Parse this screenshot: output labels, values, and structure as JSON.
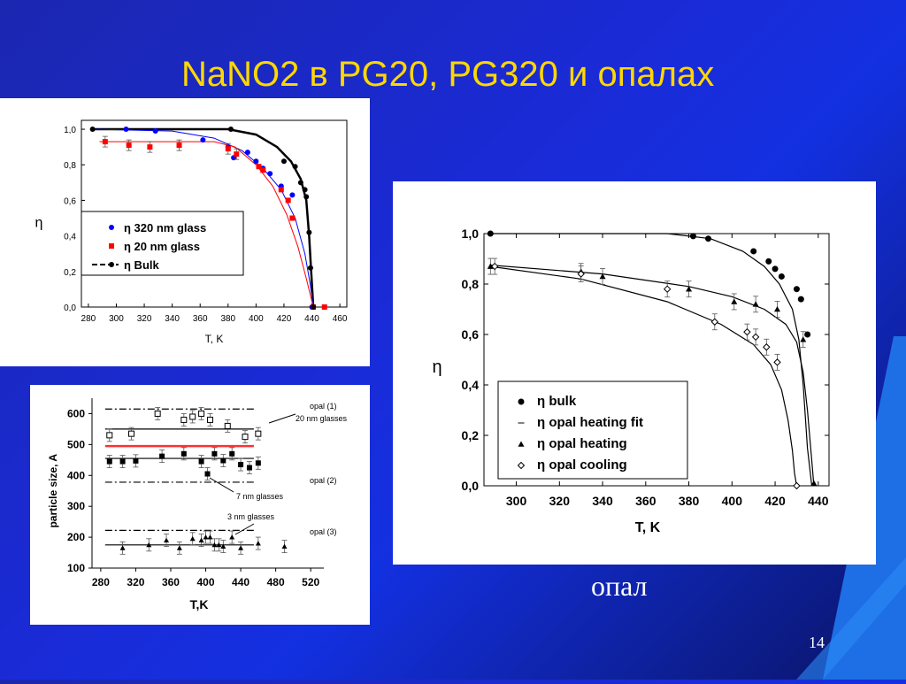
{
  "slide": {
    "title": "NaNO2 в PG20, PG320 и опалах",
    "opal_label": "опал",
    "page_number": "14"
  },
  "chart_data": [
    {
      "type": "scatter",
      "xlabel": "T, K",
      "ylabel": "η",
      "xlim": [
        275,
        465
      ],
      "ylim": [
        0.0,
        1.05
      ],
      "x_ticks": [
        "280",
        "300",
        "320",
        "340",
        "360",
        "380",
        "400",
        "420",
        "440",
        "460"
      ],
      "y_ticks": [
        "0,0",
        "0,2",
        "0,4",
        "0,6",
        "0,8",
        "1,0"
      ],
      "legend_position": "center-left",
      "series": [
        {
          "name": "η 320 nm glass",
          "color": "#0000ff",
          "marker": "circle",
          "x": [
            307,
            328,
            362,
            380,
            384,
            394,
            400,
            405,
            410,
            418,
            426,
            440
          ],
          "y": [
            1.0,
            0.99,
            0.94,
            0.9,
            0.84,
            0.87,
            0.82,
            0.78,
            0.75,
            0.68,
            0.63,
            0.0
          ]
        },
        {
          "name": "η 20 nm glass",
          "color": "#ff0000",
          "marker": "square",
          "x": [
            292,
            309,
            324,
            345,
            380,
            386,
            402,
            405,
            418,
            423,
            426,
            441,
            449
          ],
          "y": [
            0.93,
            0.91,
            0.9,
            0.91,
            0.89,
            0.86,
            0.79,
            0.77,
            0.66,
            0.6,
            0.5,
            0.0,
            0.0
          ]
        },
        {
          "name": "η Bulk",
          "color": "#000000",
          "marker": "circle",
          "x": [
            283,
            382,
            420,
            428,
            432,
            435,
            436,
            438,
            439,
            441
          ],
          "y": [
            1.0,
            1.0,
            0.82,
            0.79,
            0.7,
            0.66,
            0.62,
            0.42,
            0.22,
            0.0
          ]
        }
      ]
    },
    {
      "type": "scatter",
      "xlabel": "T,K",
      "ylabel": "particle size, A",
      "xlim": [
        270,
        535
      ],
      "ylim": [
        100,
        650
      ],
      "x_ticks": [
        "280",
        "320",
        "360",
        "400",
        "440",
        "480",
        "520"
      ],
      "y_ticks": [
        "100",
        "200",
        "300",
        "400",
        "500",
        "600"
      ],
      "annotations": [
        "opal (1)",
        "20 nm glasses",
        "opal (2)",
        "7 nm glasses",
        "3 nm glasses",
        "opal (3)"
      ],
      "series": [
        {
          "name": "20 nm glasses",
          "marker": "open-square",
          "x": [
            290,
            315,
            345,
            375,
            385,
            395,
            405,
            425,
            445,
            460
          ],
          "y": [
            530,
            535,
            600,
            580,
            590,
            600,
            580,
            560,
            525,
            535
          ]
        },
        {
          "name": "7 nm glasses",
          "marker": "filled-square",
          "x": [
            290,
            305,
            320,
            350,
            375,
            395,
            402,
            410,
            420,
            430,
            440,
            450,
            460
          ],
          "y": [
            445,
            445,
            447,
            462,
            470,
            445,
            405,
            470,
            448,
            470,
            435,
            425,
            440
          ]
        },
        {
          "name": "3 nm glasses",
          "marker": "filled-triangle",
          "x": [
            305,
            335,
            355,
            370,
            385,
            395,
            400,
            405,
            410,
            415,
            420,
            430,
            440,
            460,
            490
          ],
          "y": [
            165,
            175,
            190,
            165,
            195,
            190,
            200,
            200,
            175,
            175,
            170,
            200,
            165,
            180,
            170
          ]
        }
      ],
      "reference_lines": [
        {
          "name": "opal (1)",
          "y": 615,
          "style": "dashdot"
        },
        {
          "name": "20 nm glasses",
          "y": 550,
          "style": "solid"
        },
        {
          "name": "red line",
          "y": 495,
          "style": "solid",
          "color": "#ff3030"
        },
        {
          "name": "7 nm glasses",
          "y": 455,
          "style": "solid"
        },
        {
          "name": "opal (2)",
          "y": 378,
          "style": "dashdot"
        },
        {
          "name": "opal (3)",
          "y": 222,
          "style": "dashdot"
        },
        {
          "name": "3 nm glasses",
          "y": 175,
          "style": "solid"
        }
      ]
    },
    {
      "type": "scatter",
      "xlabel": "T, K",
      "ylabel": "η",
      "xlim": [
        285,
        445
      ],
      "ylim": [
        0.0,
        1.0
      ],
      "x_ticks": [
        "300",
        "320",
        "340",
        "360",
        "380",
        "400",
        "420",
        "440"
      ],
      "y_ticks": [
        "0,0",
        "0,2",
        "0,4",
        "0,6",
        "0,8",
        "1,0"
      ],
      "legend_position": "bottom-center",
      "series": [
        {
          "name": "η bulk",
          "marker": "filled-circle",
          "x": [
            288,
            382,
            389,
            410,
            417,
            420,
            423,
            430,
            432,
            435
          ],
          "y": [
            1.0,
            0.99,
            0.98,
            0.93,
            0.89,
            0.86,
            0.83,
            0.78,
            0.74,
            0.6
          ]
        },
        {
          "name": "η opal heating fit",
          "marker": "line"
        },
        {
          "name": "η opal heating",
          "marker": "filled-triangle",
          "x": [
            288,
            330,
            340,
            380,
            401,
            411,
            421,
            433,
            438
          ],
          "y": [
            0.87,
            0.85,
            0.83,
            0.78,
            0.73,
            0.72,
            0.7,
            0.58,
            0.01
          ]
        },
        {
          "name": "η opal cooling",
          "marker": "open-diamond",
          "x": [
            290,
            330,
            370,
            392,
            407,
            411,
            416,
            421,
            430
          ],
          "y": [
            0.87,
            0.84,
            0.78,
            0.65,
            0.61,
            0.59,
            0.55,
            0.49,
            0.0
          ]
        }
      ]
    }
  ]
}
